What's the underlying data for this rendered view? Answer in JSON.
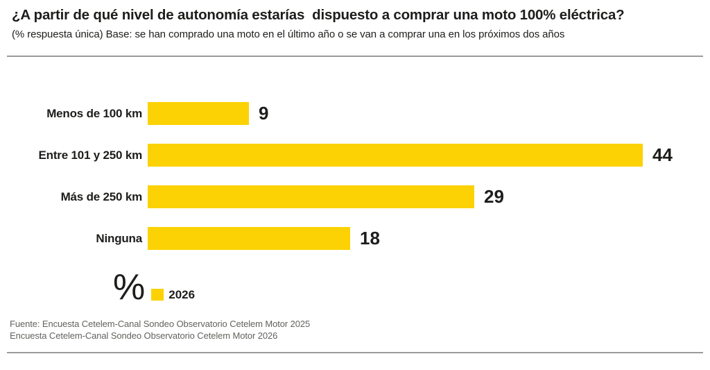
{
  "header": {
    "title": "¿A partir de qué nivel de autonomía estarías  dispuesto a comprar una moto 100% eléctrica?",
    "subtitle": "(% respuesta única) Base: se han comprado una moto en el último año o se van a comprar una en los próximos dos años"
  },
  "chart_data": {
    "type": "bar",
    "orientation": "horizontal",
    "title": "¿A partir de qué nivel de autonomía estarías dispuesto a comprar una moto 100% eléctrica?",
    "unit_symbol": "%",
    "categories": [
      "Menos de 100 km",
      "Entre 101 y 250 km",
      "Más de 250 km",
      "Ninguna"
    ],
    "series": [
      {
        "name": "2026",
        "values": [
          9,
          44,
          29,
          18
        ],
        "color": "#fcd205"
      }
    ],
    "xlim": [
      0,
      45
    ],
    "grid": false,
    "legend_position": "bottom-left",
    "value_labels_shown": true
  },
  "colors": {
    "accent_yellow": "#fcd205",
    "text_dark": "#1d1d1b",
    "divider_gray": "#9a9a9a",
    "footer_gray": "#62625e"
  },
  "footer": {
    "line1": "Fuente: Encuesta Cetelem-Canal Sondeo Observatorio Cetelem Motor 2025",
    "line2": "Encuesta Cetelem-Canal Sondeo Observatorio Cetelem Motor 2026"
  }
}
